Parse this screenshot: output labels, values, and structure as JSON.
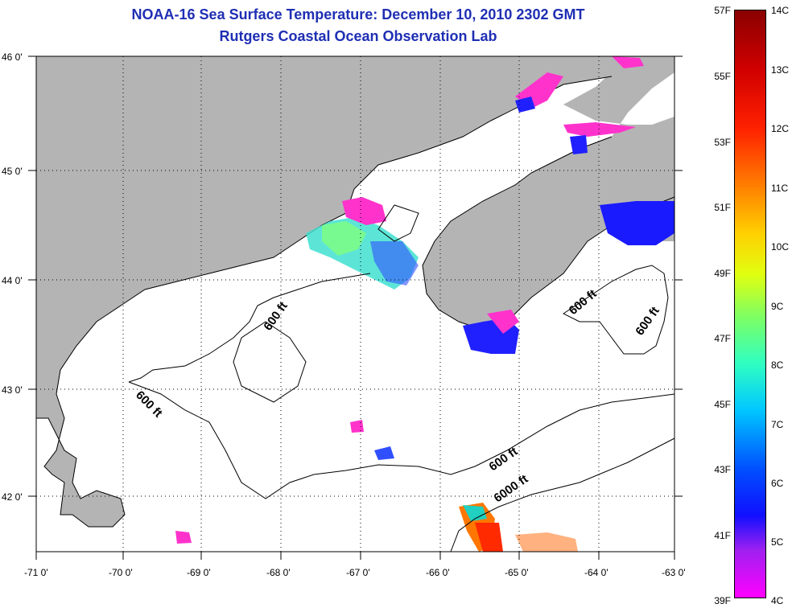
{
  "header": {
    "title": "NOAA-16 Sea Surface Temperature:  December 10, 2010 2302 GMT",
    "subtitle": "Rutgers Coastal Ocean Observation Lab"
  },
  "axes": {
    "lat_labels": [
      "46 0'",
      "45 0'",
      "44 0'",
      "43 0'",
      "42 0'"
    ],
    "lon_labels": [
      "-71 0'",
      "-70 0'",
      "-69 0'",
      "-68 0'",
      "-67 0'",
      "-66 0'",
      "-65 0'",
      "-64 0'",
      "-63 0'"
    ]
  },
  "contours": {
    "labels": [
      "600 ft",
      "600 ft",
      "600 ft",
      "600 ft",
      "600 ft",
      "6000 ft"
    ]
  },
  "colorbar": {
    "fahrenheit": [
      "57F",
      "55F",
      "53F",
      "51F",
      "49F",
      "47F",
      "45F",
      "43F",
      "41F",
      "39F"
    ],
    "celsius": [
      "14C",
      "13C",
      "12C",
      "11C",
      "10C",
      "9C",
      "8C",
      "7C",
      "6C",
      "5C",
      "4C"
    ]
  },
  "colors": {
    "land": "#b4b4b4",
    "ocean": "#ffffff",
    "title": "#1f2fb4"
  }
}
